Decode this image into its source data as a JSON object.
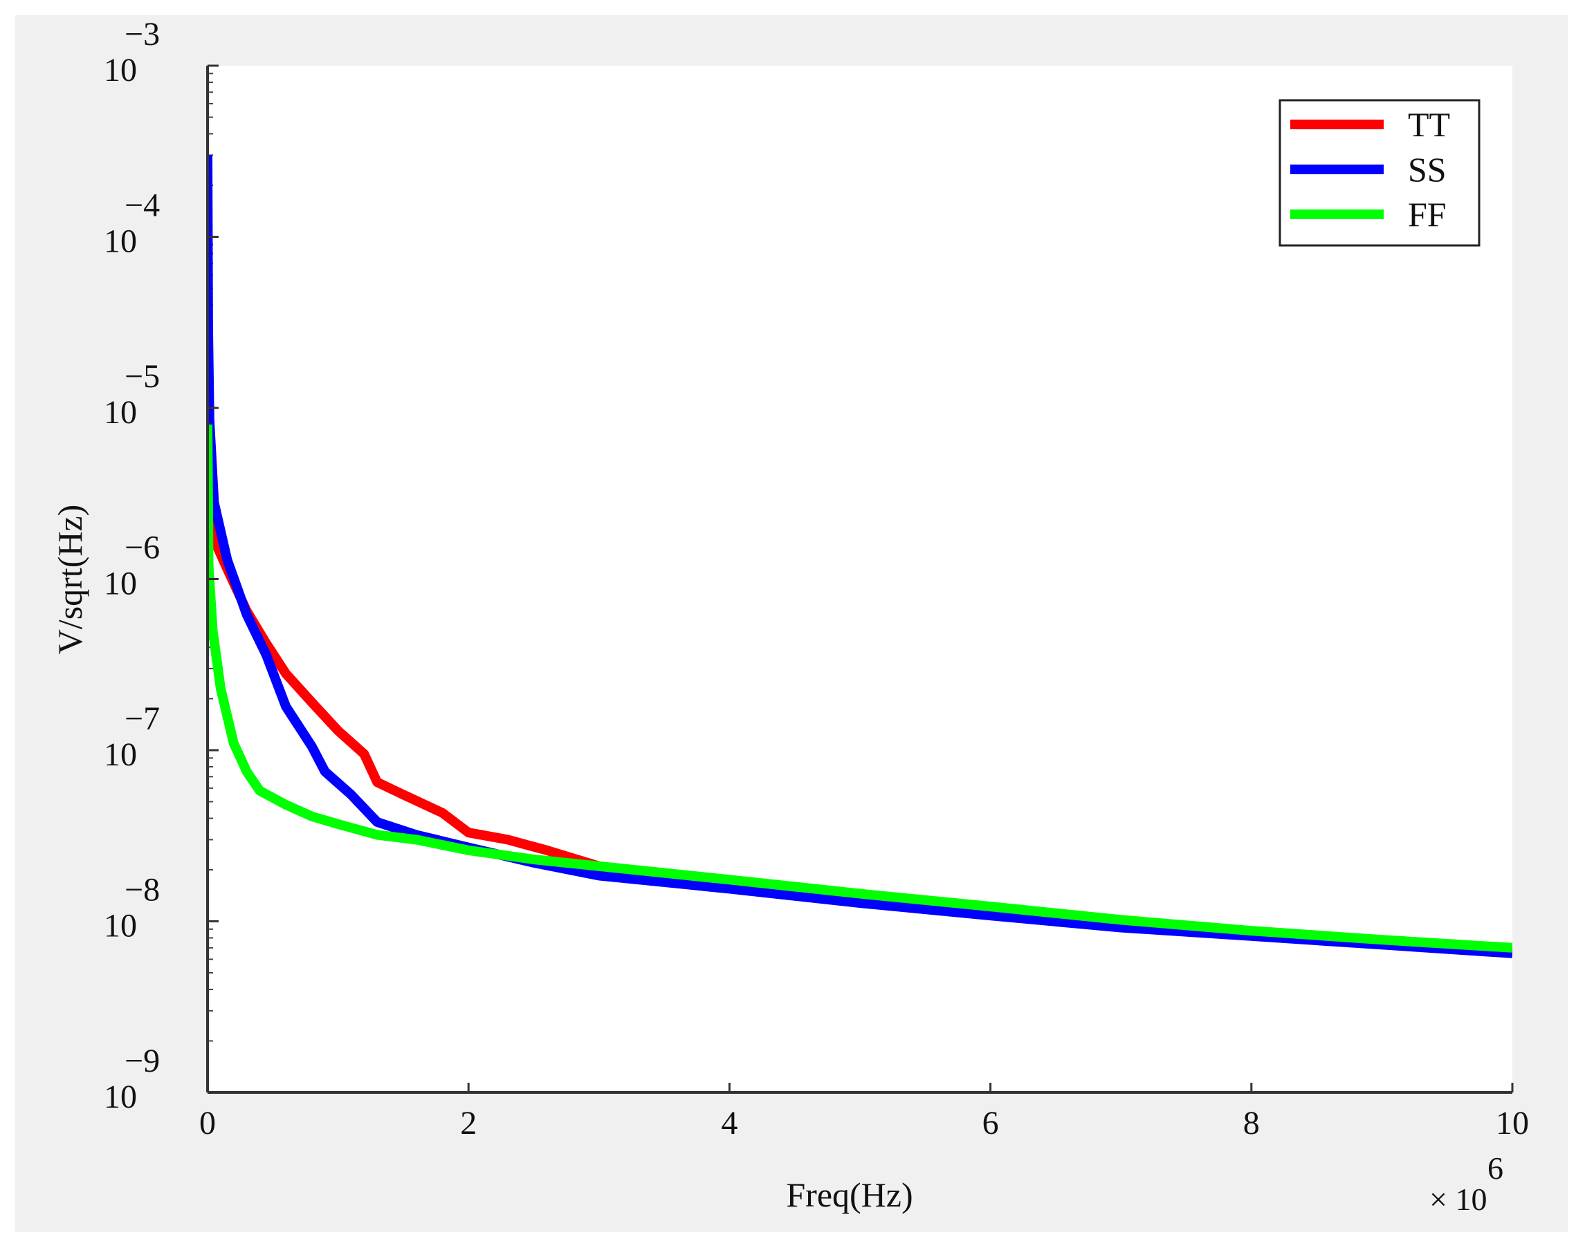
{
  "chart_data": {
    "type": "line",
    "xlabel": "Freq(Hz)",
    "ylabel": "V/sqrt(Hz)",
    "x_multiplier": {
      "prefix": "× 10",
      "exponent": "6"
    },
    "xlim": [
      0,
      10000000
    ],
    "ylim": [
      1e-09,
      0.001
    ],
    "yscale": "log",
    "grid": false,
    "legend_position": "top-right",
    "x_ticks": [
      {
        "value": 0,
        "label": "0"
      },
      {
        "value": 2000000,
        "label": "2"
      },
      {
        "value": 4000000,
        "label": "4"
      },
      {
        "value": 6000000,
        "label": "6"
      },
      {
        "value": 8000000,
        "label": "8"
      },
      {
        "value": 10000000,
        "label": "10"
      }
    ],
    "y_ticks": [
      {
        "value": 0.001,
        "base": "10",
        "exp": "−3"
      },
      {
        "value": 0.0001,
        "base": "10",
        "exp": "−4"
      },
      {
        "value": 1e-05,
        "base": "10",
        "exp": "−5"
      },
      {
        "value": 1e-06,
        "base": "10",
        "exp": "−6"
      },
      {
        "value": 1e-07,
        "base": "10",
        "exp": "−7"
      },
      {
        "value": 1e-08,
        "base": "10",
        "exp": "−8"
      },
      {
        "value": 1e-09,
        "base": "10",
        "exp": "−9"
      }
    ],
    "series": [
      {
        "name": "TT",
        "color": "#ff0000",
        "points": [
          [
            0,
            2.8e-06
          ],
          [
            50000,
            1.7e-06
          ],
          [
            150000,
            1.15e-06
          ],
          [
            300000,
            6.5e-07
          ],
          [
            450000,
            4.2e-07
          ],
          [
            600000,
            2.8e-07
          ],
          [
            800000,
            1.9e-07
          ],
          [
            1000000,
            1.3e-07
          ],
          [
            1200000,
            9.5e-08
          ],
          [
            1300000,
            6.5e-08
          ],
          [
            1500000,
            5.5e-08
          ],
          [
            1800000,
            4.3e-08
          ],
          [
            2000000,
            3.3e-08
          ],
          [
            2300000,
            3e-08
          ],
          [
            2600000,
            2.6e-08
          ],
          [
            3000000,
            2.1e-08
          ],
          [
            4000000,
            1.65e-08
          ],
          [
            5000000,
            1.35e-08
          ],
          [
            6000000,
            1.15e-08
          ],
          [
            7000000,
            9.7e-09
          ],
          [
            8000000,
            8.5e-09
          ],
          [
            9000000,
            7.5e-09
          ],
          [
            10000000,
            7e-09
          ]
        ]
      },
      {
        "name": "SS",
        "color": "#0000ff",
        "points": [
          [
            0,
            0.0003
          ],
          [
            5000,
            3e-05
          ],
          [
            15000,
            8.5e-06
          ],
          [
            50000,
            2.8e-06
          ],
          [
            150000,
            1.3e-06
          ],
          [
            300000,
            6.2e-07
          ],
          [
            450000,
            3.6e-07
          ],
          [
            600000,
            1.8e-07
          ],
          [
            800000,
            1.05e-07
          ],
          [
            900000,
            7.5e-08
          ],
          [
            1100000,
            5.5e-08
          ],
          [
            1300000,
            3.8e-08
          ],
          [
            1600000,
            3.2e-08
          ],
          [
            2000000,
            2.7e-08
          ],
          [
            2500000,
            2.2e-08
          ],
          [
            3000000,
            1.85e-08
          ],
          [
            4000000,
            1.55e-08
          ],
          [
            5000000,
            1.28e-08
          ],
          [
            6000000,
            1.08e-08
          ],
          [
            7000000,
            9.2e-09
          ],
          [
            8000000,
            8.2e-09
          ],
          [
            9000000,
            7.3e-09
          ],
          [
            10000000,
            6.5e-09
          ]
        ]
      },
      {
        "name": "FF",
        "color": "#00ff00",
        "points": [
          [
            0,
            8e-06
          ],
          [
            8000,
            1.2e-06
          ],
          [
            40000,
            5e-07
          ],
          [
            100000,
            2.3e-07
          ],
          [
            200000,
            1.1e-07
          ],
          [
            300000,
            7.5e-08
          ],
          [
            400000,
            5.8e-08
          ],
          [
            600000,
            4.8e-08
          ],
          [
            800000,
            4.1e-08
          ],
          [
            1000000,
            3.7e-08
          ],
          [
            1300000,
            3.2e-08
          ],
          [
            1600000,
            3e-08
          ],
          [
            2000000,
            2.6e-08
          ],
          [
            2500000,
            2.3e-08
          ],
          [
            3000000,
            2.1e-08
          ],
          [
            4000000,
            1.75e-08
          ],
          [
            5000000,
            1.45e-08
          ],
          [
            6000000,
            1.22e-08
          ],
          [
            7000000,
            1.02e-08
          ],
          [
            8000000,
            8.8e-09
          ],
          [
            9000000,
            7.8e-09
          ],
          [
            10000000,
            7e-09
          ]
        ]
      }
    ]
  }
}
